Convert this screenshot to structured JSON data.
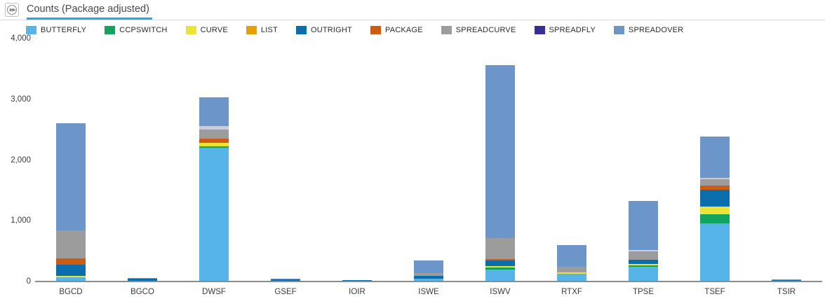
{
  "header": {
    "title": "Counts (Package adjusted)",
    "expand_icon_glyph": "▶▶"
  },
  "chart_data": {
    "type": "bar",
    "stacked": true,
    "title": "Counts (Package adjusted)",
    "xlabel": "",
    "ylabel": "",
    "ylim": [
      0,
      4000
    ],
    "grid": false,
    "legend_position": "top",
    "yticks": [
      {
        "value": 0,
        "label": "0"
      },
      {
        "value": 1000,
        "label": "1,000"
      },
      {
        "value": 2000,
        "label": "2,000"
      },
      {
        "value": 3000,
        "label": "3,000"
      },
      {
        "value": 4000,
        "label": "4,000"
      }
    ],
    "categories": [
      "BGCD",
      "BGCO",
      "DWSF",
      "GSEF",
      "IOIR",
      "ISWE",
      "ISWV",
      "RTXF",
      "TPSE",
      "TSEF",
      "TSIR"
    ],
    "series": [
      {
        "name": "BUTTERFLY",
        "color": "#56B4E9",
        "values": [
          60,
          0,
          2190,
          0,
          0,
          30,
          185,
          120,
          230,
          950,
          0
        ]
      },
      {
        "name": "CCPSWITCH",
        "color": "#10A45F",
        "values": [
          0,
          0,
          25,
          0,
          0,
          10,
          30,
          0,
          20,
          145,
          0
        ]
      },
      {
        "name": "CURVE",
        "color": "#EDE337",
        "values": [
          25,
          0,
          55,
          0,
          0,
          0,
          25,
          20,
          25,
          130,
          0
        ]
      },
      {
        "name": "LIST",
        "color": "#E8A000",
        "values": [
          0,
          0,
          0,
          0,
          0,
          0,
          0,
          0,
          0,
          0,
          0
        ]
      },
      {
        "name": "OUTRIGHT",
        "color": "#0A6EAD",
        "values": [
          185,
          35,
          0,
          25,
          12,
          45,
          90,
          0,
          75,
          270,
          15
        ]
      },
      {
        "name": "PACKAGE",
        "color": "#CE5B12",
        "values": [
          95,
          0,
          70,
          0,
          0,
          0,
          25,
          0,
          0,
          75,
          0
        ]
      },
      {
        "name": "SPREADCURVE",
        "color": "#9C9C9C",
        "values": [
          460,
          0,
          150,
          0,
          0,
          40,
          345,
          95,
          140,
          105,
          0
        ]
      },
      {
        "name": "SPREADFLY",
        "color": "#372D96",
        "bar_color": "#C9CCDC",
        "values": [
          0,
          0,
          55,
          0,
          0,
          0,
          0,
          0,
          15,
          25,
          0
        ]
      },
      {
        "name": "SPREADOVER",
        "color": "#6C95C9",
        "values": [
          1775,
          15,
          480,
          15,
          0,
          215,
          2850,
          355,
          815,
          680,
          5
        ]
      }
    ]
  }
}
